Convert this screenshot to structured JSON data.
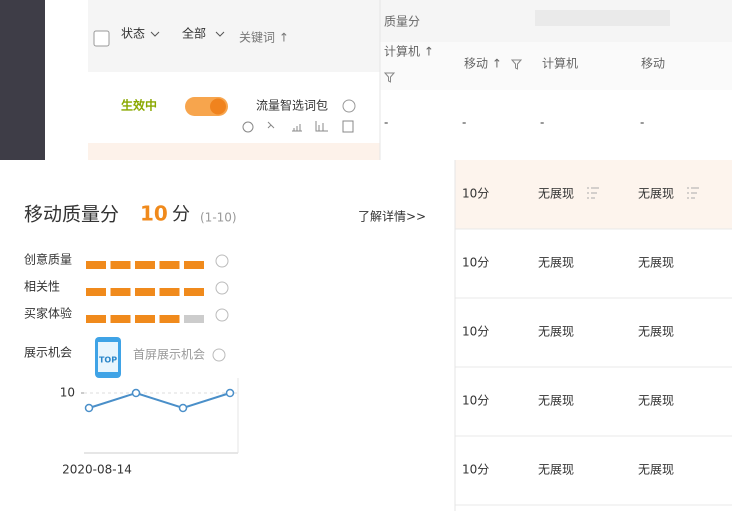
{
  "sidebar_table": {
    "header": {
      "status": "状态",
      "all": "全部",
      "keyword": "关键词 ↑"
    },
    "row": {
      "status": "生效中",
      "name": "流量智选词包"
    }
  },
  "quality_table": {
    "group_header": "质量分",
    "columns": [
      "计算机 ↑",
      "移动 ↑",
      "计算机",
      "移动"
    ],
    "first_row": [
      "-",
      "-",
      "-",
      "-"
    ],
    "rows": [
      [
        "10分",
        "无展现",
        "无展现"
      ],
      [
        "10分",
        "无展现",
        "无展现"
      ],
      [
        "10分",
        "无展现",
        "无展现"
      ],
      [
        "10分",
        "无展现",
        "无展现"
      ],
      [
        "10分",
        "无展现",
        "无展现"
      ]
    ]
  },
  "popup": {
    "title": "移动质量分",
    "score": 10,
    "unit": "分",
    "range": "(1-10)",
    "link": "了解详情>>",
    "scale": 5,
    "metrics": [
      {
        "label": "创意质量",
        "level": 5
      },
      {
        "label": "相关性",
        "level": 5
      },
      {
        "label": "买家体验",
        "level": 4
      }
    ],
    "opportunity": {
      "label": "展示机会",
      "badge": "TOP",
      "value": "首屏展示机会"
    }
  },
  "chart_data": {
    "type": "line",
    "categories": [
      "2020-08-14",
      null,
      null,
      null
    ],
    "values": [
      9,
      10,
      9,
      10
    ],
    "ylim": [
      6,
      11
    ],
    "yticks": [
      10
    ],
    "color": "#4a8fc9",
    "grid": true
  }
}
